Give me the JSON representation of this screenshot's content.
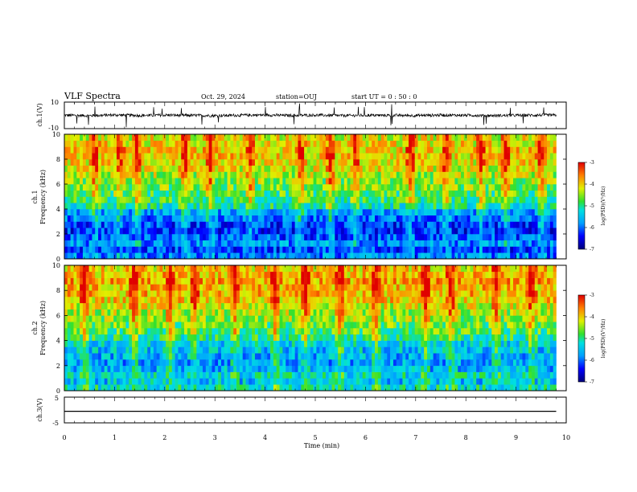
{
  "header": {
    "title": "VLF Spectra",
    "date": "Oct. 29, 2024",
    "station": "station=OUJ",
    "start_ut": "start  UT =   0 : 50 : 0"
  },
  "chart_data": [
    {
      "type": "line",
      "panel": "ch1-voltage",
      "ylabel": "ch.1(V)",
      "ylim": [
        -10,
        10
      ],
      "y_ticks": [
        "10",
        "-10"
      ],
      "xlim": [
        0,
        10
      ],
      "x": [
        0,
        0.5,
        1,
        1.5,
        2,
        2.5,
        3,
        3.5,
        4,
        4.5,
        5,
        5.5,
        6,
        6.5,
        7,
        7.5,
        8,
        8.5,
        9,
        9.5,
        9.8
      ],
      "values": [
        0.1,
        -0.2,
        0.3,
        -0.1,
        0.2,
        0.0,
        -0.2,
        0.1,
        0.3,
        -0.1,
        0.2,
        -0.2,
        0.1,
        0.0,
        -0.1,
        0.2,
        0.1,
        -0.2,
        0.0,
        0.2,
        0.1
      ],
      "color": "#000000"
    },
    {
      "type": "heatmap",
      "panel": "ch1-spectrogram",
      "ylabel_lines": [
        "ch.1",
        "Frequency  (kHz)"
      ],
      "ylim": [
        0,
        10
      ],
      "y_ticks": [
        "0",
        "2",
        "4",
        "6",
        "8",
        "10"
      ],
      "xlim": [
        0,
        10
      ],
      "data_end_min": 9.8,
      "colorbar": {
        "label": "log(PSD)(V²/Hz)",
        "range": [
          -7,
          -3
        ],
        "ticks": [
          "-3",
          "-4",
          "-5",
          "-6",
          "-7"
        ]
      },
      "freq_khz": [
        0.25,
        0.75,
        1.25,
        1.75,
        2.25,
        2.75,
        3.25,
        3.75,
        4.25,
        4.75,
        5.25,
        5.75,
        6.25,
        6.75,
        7.25,
        7.75,
        8.25,
        8.75,
        9.25,
        9.75
      ],
      "mean_log_psd": [
        -5.9,
        -6.2,
        -5.8,
        -6.1,
        -6.3,
        -6.2,
        -5.9,
        -5.7,
        -5.1,
        -4.9,
        -4.8,
        -4.6,
        -4.5,
        -4.4,
        -4.2,
        -4.1,
        -4.0,
        -4.0,
        -4.1,
        -4.2
      ],
      "emission_minutes": [
        0.6,
        1.1,
        1.45,
        2.4,
        2.9,
        3.7,
        4.7,
        5.3,
        5.8,
        6.9,
        7.6,
        8.3,
        8.8,
        9.5
      ]
    },
    {
      "type": "heatmap",
      "panel": "ch2-spectrogram",
      "ylabel_lines": [
        "ch.2",
        "Frequency  (kHz)"
      ],
      "ylim": [
        0,
        10
      ],
      "y_ticks": [
        "0",
        "2",
        "4",
        "6",
        "8",
        "10"
      ],
      "xlim": [
        0,
        10
      ],
      "data_end_min": 9.8,
      "colorbar": {
        "label": "log(PSD)(V²/Hz)",
        "range": [
          -7,
          -3
        ],
        "ticks": [
          "-3",
          "-4",
          "-5",
          "-6",
          "-7"
        ]
      },
      "freq_khz": [
        0.25,
        0.75,
        1.25,
        1.75,
        2.25,
        2.75,
        3.25,
        3.75,
        4.25,
        4.75,
        5.25,
        5.75,
        6.25,
        6.75,
        7.25,
        7.75,
        8.25,
        8.75,
        9.25,
        9.75
      ],
      "mean_log_psd": [
        -5.2,
        -5.5,
        -5.3,
        -5.6,
        -5.7,
        -5.6,
        -5.5,
        -5.4,
        -5.0,
        -4.8,
        -4.7,
        -4.5,
        -4.4,
        -4.2,
        -4.0,
        -3.9,
        -3.9,
        -3.8,
        -3.9,
        -4.0
      ],
      "emission_minutes": [
        0.4,
        1.4,
        2.1,
        2.6,
        3.4,
        4.2,
        4.8,
        5.5,
        6.2,
        7.2,
        7.7,
        8.6,
        9.3
      ]
    },
    {
      "type": "line",
      "panel": "ch3-voltage",
      "ylabel": "ch.3(V)",
      "ylim": [
        -5,
        5
      ],
      "y_ticks": [
        "5",
        "-5"
      ],
      "xlim": [
        0,
        10
      ],
      "x": [
        0,
        9.8
      ],
      "values": [
        -0.5,
        -0.5
      ],
      "xlabel": "Time  (min)",
      "x_ticks": [
        "0",
        "1",
        "2",
        "3",
        "4",
        "5",
        "6",
        "7",
        "8",
        "9",
        "10"
      ],
      "color": "#000000"
    }
  ]
}
